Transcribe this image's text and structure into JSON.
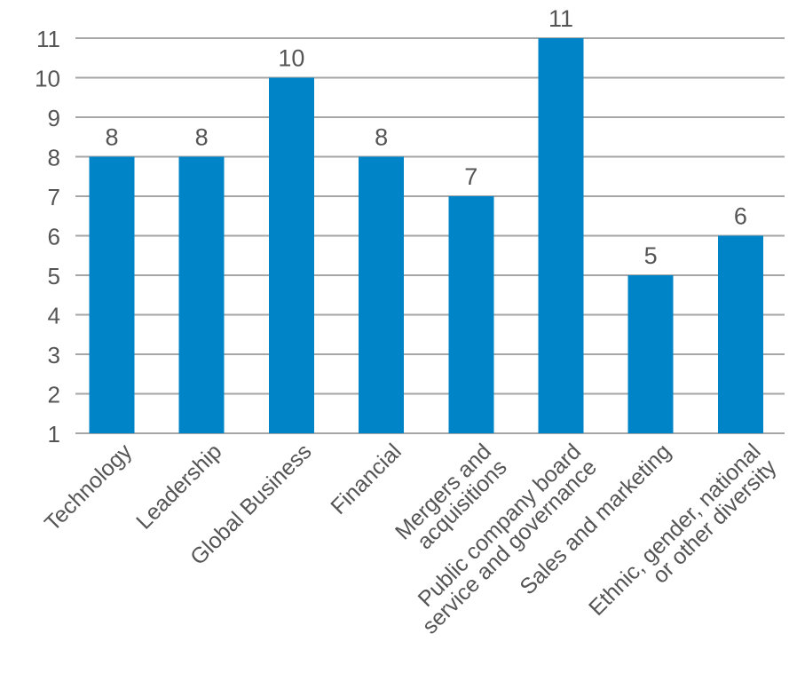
{
  "chart_data": {
    "type": "bar",
    "categories": [
      [
        "Technology"
      ],
      [
        "Leadership"
      ],
      [
        "Global Business"
      ],
      [
        "Financial"
      ],
      [
        "Mergers and",
        "acquisitions"
      ],
      [
        "Public company board",
        "service and governance"
      ],
      [
        "Sales and marketing"
      ],
      [
        "Ethnic, gender, national",
        "or other diversity"
      ]
    ],
    "values": [
      8,
      8,
      10,
      8,
      7,
      11,
      5,
      6
    ],
    "ylim": [
      1,
      11
    ],
    "yticks": [
      1,
      2,
      3,
      4,
      5,
      6,
      7,
      8,
      9,
      10,
      11
    ],
    "grid": true,
    "data_labels": true,
    "bar_color": "#0084c8",
    "label_color": "#555555",
    "grid_color": "#a6a6a6"
  }
}
